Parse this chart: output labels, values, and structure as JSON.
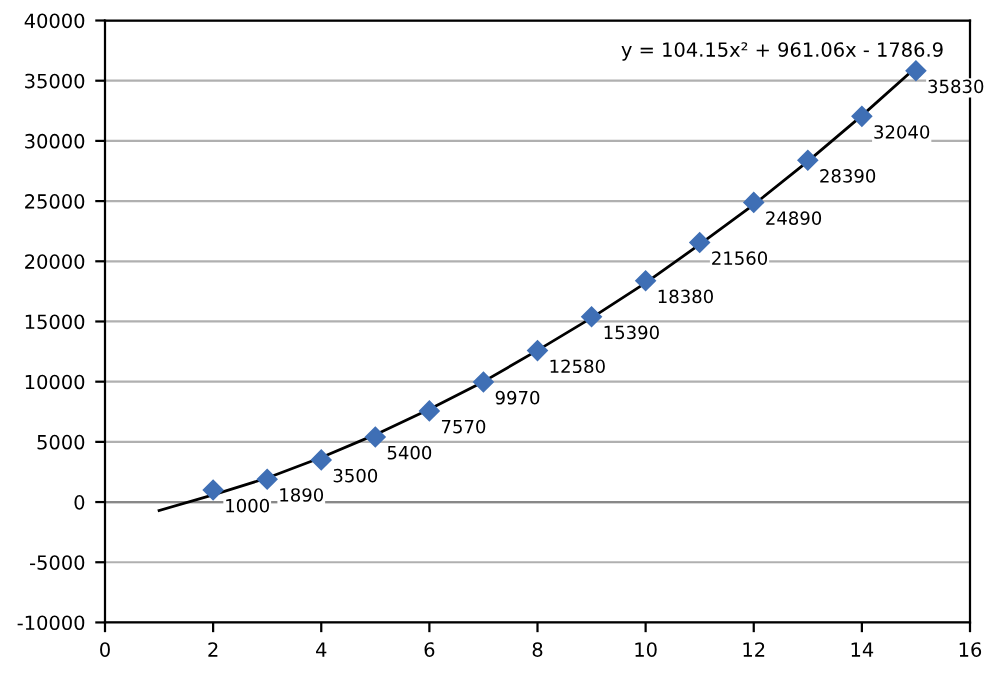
{
  "chart_data": {
    "type": "scatter",
    "xlim": [
      0,
      16
    ],
    "xticks": [
      0,
      2,
      4,
      6,
      8,
      10,
      12,
      14,
      16
    ],
    "ylim": [
      -10000,
      40000
    ],
    "yticks": [
      -10000,
      -5000,
      0,
      5000,
      10000,
      15000,
      20000,
      25000,
      30000,
      35000,
      40000
    ],
    "grid": "y",
    "legend": false,
    "marker": "diamond",
    "annotations": [
      "y = 104.15x² + 961.06x - 1786.9"
    ],
    "series": [
      {
        "color": "#3f6fb5",
        "x": [
          2,
          3,
          4,
          5,
          6,
          7,
          8,
          9,
          10,
          11,
          12,
          13,
          14,
          15
        ],
        "values": [
          1000,
          1890,
          3500,
          5400,
          7570,
          9970,
          12580,
          15390,
          18380,
          21560,
          24890,
          28390,
          32040,
          35830
        ],
        "value_labels": [
          "1000",
          "1890",
          "3500",
          "5400",
          "7570",
          "9970",
          "12580",
          "15390",
          "18380",
          "21560",
          "24890",
          "28390",
          "32040",
          "35830"
        ]
      },
      {
        "type": "line",
        "color": "#000000",
        "marker": "none",
        "line_style": "solid",
        "x": [
          1,
          2,
          3,
          4,
          5,
          6,
          7,
          8,
          9,
          10,
          11,
          12,
          13,
          14,
          15
        ],
        "values": [
          -700,
          600,
          2000,
          3700,
          5600,
          7700,
          10000,
          12600,
          15300,
          18200,
          21400,
          24700,
          28300,
          32100,
          36100
        ]
      }
    ]
  }
}
